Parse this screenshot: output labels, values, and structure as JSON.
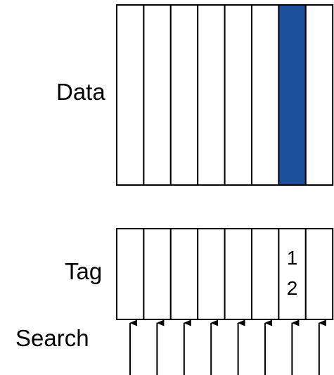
{
  "labels": {
    "data": "Data",
    "tag": "Tag",
    "search": "Search"
  },
  "data_array": {
    "column_count": 8,
    "highlighted_column_index": 6,
    "highlight_color": "#1b4f9c"
  },
  "tag_array": {
    "column_count": 8,
    "entries": [
      {
        "column_index": 6,
        "values": [
          "1",
          "2"
        ]
      }
    ]
  },
  "search": {
    "arrow_count": 8
  }
}
